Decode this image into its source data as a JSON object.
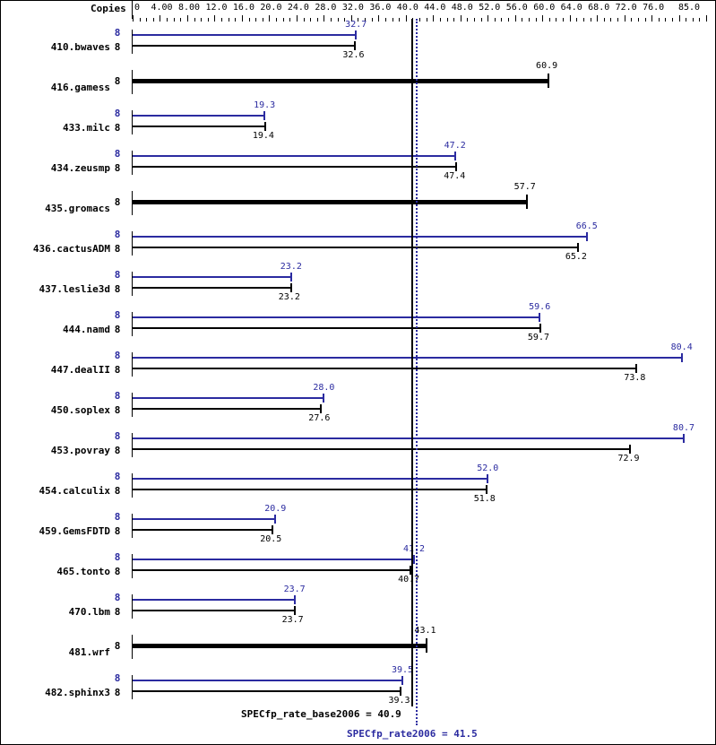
{
  "header": {
    "copies_label": "Copies"
  },
  "colors": {
    "base": "#000000",
    "peak": "#2b2ba0"
  },
  "axis": {
    "ticks": [
      "0",
      "4.00",
      "8.00",
      "12.0",
      "16.0",
      "20.0",
      "24.0",
      "28.0",
      "32.0",
      "36.0",
      "40.0",
      "44.0",
      "48.0",
      "52.0",
      "56.0",
      "60.0",
      "64.0",
      "68.0",
      "72.0",
      "76.0",
      "85.0"
    ]
  },
  "summary": {
    "base_label": "SPECfp_rate_base2006 = 40.9",
    "peak_label": "SPECfp_rate2006 = 41.5"
  },
  "chart_data": {
    "type": "bar",
    "orientation": "horizontal",
    "title": "",
    "xlabel": "",
    "ylabel": "",
    "xlim": [
      0,
      85
    ],
    "grid": false,
    "legend": "none (peak in blue, base in black)",
    "categories": [
      "410.bwaves",
      "416.gamess",
      "433.milc",
      "434.zeusmp",
      "435.gromacs",
      "436.cactusADM",
      "437.leslie3d",
      "444.namd",
      "447.dealII",
      "450.soplex",
      "453.povray",
      "454.calculix",
      "459.GemsFDTD",
      "465.tonto",
      "470.lbm",
      "481.wrf",
      "482.sphinx3"
    ],
    "series": [
      {
        "name": "Peak (SPECfp_rate2006)",
        "color": "#2b2ba0",
        "copies": [
          8,
          null,
          8,
          8,
          null,
          8,
          8,
          8,
          8,
          8,
          8,
          8,
          8,
          8,
          8,
          null,
          8
        ],
        "values": [
          32.7,
          null,
          19.3,
          47.2,
          null,
          66.5,
          23.2,
          59.6,
          80.4,
          28.0,
          80.7,
          52.0,
          20.9,
          41.2,
          23.7,
          null,
          39.5
        ]
      },
      {
        "name": "Base (SPECfp_rate_base2006)",
        "color": "#000000",
        "copies": [
          8,
          8,
          8,
          8,
          8,
          8,
          8,
          8,
          8,
          8,
          8,
          8,
          8,
          8,
          8,
          8,
          8
        ],
        "values": [
          32.6,
          60.9,
          19.4,
          47.4,
          57.7,
          65.2,
          23.2,
          59.7,
          73.8,
          27.6,
          72.9,
          51.8,
          20.5,
          40.7,
          23.7,
          43.1,
          39.3
        ]
      }
    ],
    "reference_lines": [
      {
        "name": "SPECfp_rate_base2006",
        "value": 40.9,
        "style": "solid",
        "color": "#000000"
      },
      {
        "name": "SPECfp_rate2006",
        "value": 41.5,
        "style": "dotted",
        "color": "#2b2ba0"
      }
    ]
  }
}
